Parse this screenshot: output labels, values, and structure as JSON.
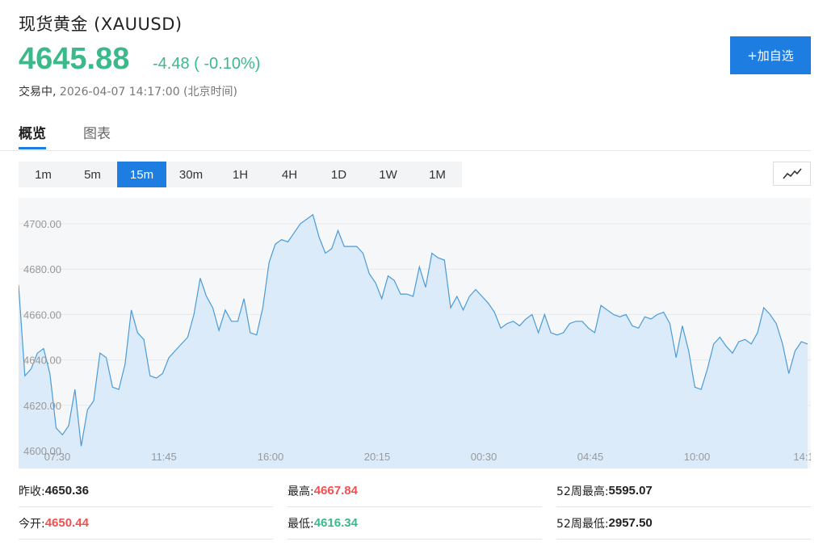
{
  "header": {
    "title": "现货黄金 (XAUUSD)",
    "price": "4645.88",
    "change": "-4.48 ( -0.10%)",
    "status": "交易中,",
    "datetime": "2026-04-07 14:17:00 (北京时间)",
    "add_button": "+加自选"
  },
  "tabs": [
    "概览",
    "图表"
  ],
  "intervals": [
    "1m",
    "5m",
    "15m",
    "30m",
    "1H",
    "4H",
    "1D",
    "1W",
    "1M"
  ],
  "active_interval": "15m",
  "colors": {
    "accent": "#1e7de0",
    "up": "#f05050",
    "down": "#3cb98a",
    "line": "#4a9bd8",
    "fill": "#dcebfa"
  },
  "chart_data": {
    "type": "area",
    "y_ticks": [
      "4700.00",
      "4680.00",
      "4660.00",
      "4640.00",
      "4620.00",
      "4600.00"
    ],
    "x_ticks": [
      "07:30",
      "11:45",
      "16:00",
      "20:15",
      "00:30",
      "04:45",
      "10:00",
      "14:1"
    ],
    "ylim": [
      4600,
      4700
    ],
    "values": [
      4673,
      4633,
      4636,
      4643,
      4645,
      4634,
      4610,
      4607,
      4611,
      4627,
      4602,
      4618,
      4622,
      4643,
      4641,
      4628,
      4627,
      4638,
      4662,
      4652,
      4649,
      4633,
      4632,
      4634,
      4641,
      4644,
      4647,
      4650,
      4660,
      4676,
      4668,
      4663,
      4653,
      4662,
      4657,
      4657,
      4667,
      4652,
      4651,
      4663,
      4683,
      4691,
      4693,
      4692,
      4696,
      4700,
      4702,
      4704,
      4694,
      4687,
      4689,
      4697,
      4690,
      4690,
      4690,
      4687,
      4678,
      4674,
      4667,
      4677,
      4675,
      4669,
      4669,
      4668,
      4681,
      4672,
      4687,
      4685,
      4684,
      4663,
      4668,
      4662,
      4668,
      4671,
      4668,
      4665,
      4661,
      4654,
      4656,
      4657,
      4655,
      4658,
      4660,
      4652,
      4660,
      4652,
      4651,
      4652,
      4656,
      4657,
      4657,
      4654,
      4652,
      4664,
      4662,
      4660,
      4659,
      4660,
      4655,
      4654,
      4659,
      4658,
      4660,
      4661,
      4656,
      4641,
      4655,
      4644,
      4628,
      4627,
      4636,
      4647,
      4650,
      4646,
      4643,
      4648,
      4649,
      4647,
      4652,
      4663,
      4660,
      4656,
      4647,
      4634,
      4644,
      4648,
      4647
    ]
  },
  "stats": [
    {
      "label": "昨收:",
      "value": "4650.36",
      "tone": "dark"
    },
    {
      "label": "最高:",
      "value": "4667.84",
      "tone": "red"
    },
    {
      "label": "52周最高:",
      "value": "5595.07",
      "tone": "dark"
    },
    {
      "label": "今开:",
      "value": "4650.44",
      "tone": "red"
    },
    {
      "label": "最低:",
      "value": "4616.34",
      "tone": "green"
    },
    {
      "label": "52周最低:",
      "value": "2957.50",
      "tone": "dark"
    }
  ]
}
